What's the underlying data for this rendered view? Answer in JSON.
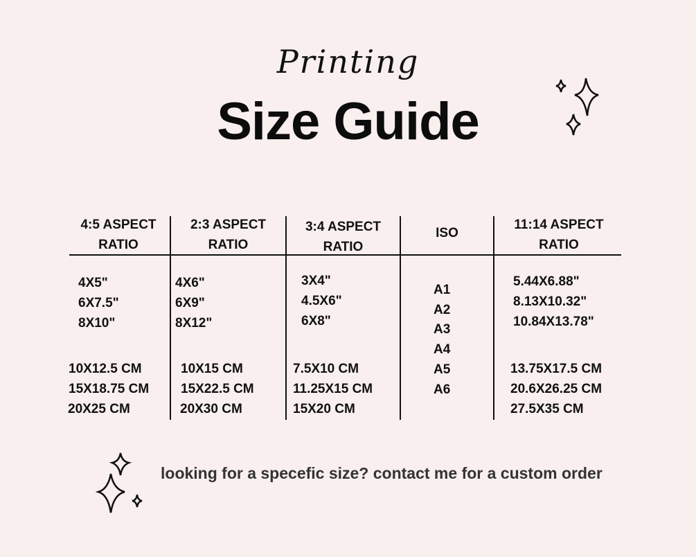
{
  "header": {
    "script_title": "Printing",
    "title": "Size Guide"
  },
  "table": {
    "columns": [
      {
        "header": [
          "4:5 ASPECT",
          "RATIO"
        ],
        "inches": [
          "4X5\"",
          "6X7.5\"",
          "8X10\""
        ],
        "cm": [
          "10X12.5 CM",
          "15X18.75 CM",
          "20X25 CM"
        ]
      },
      {
        "header": [
          "2:3 ASPECT",
          "RATIO"
        ],
        "inches": [
          "4X6\"",
          "6X9\"",
          "8X12\""
        ],
        "cm": [
          "10X15 CM",
          "15X22.5 CM",
          "20X30 CM"
        ]
      },
      {
        "header": [
          "3:4 ASPECT",
          "RATIO"
        ],
        "inches": [
          "3X4\"",
          "4.5X6\"",
          "6X8\""
        ],
        "cm": [
          "7.5X10 CM",
          "11.25X15 CM",
          "15X20 CM"
        ]
      },
      {
        "header": [
          "ISO"
        ],
        "sizes": [
          "A1",
          "A2",
          "A3",
          "A4",
          "A5",
          "A6"
        ]
      },
      {
        "header": [
          "11:14 ASPECT",
          "RATIO"
        ],
        "inches": [
          "5.44X6.88\"",
          "8.13X10.32\"",
          "10.84X13.78\""
        ],
        "cm": [
          "13.75X17.5 CM",
          "20.6X26.25 CM",
          "27.5X35 CM"
        ]
      }
    ]
  },
  "footer": {
    "text": "looking for a specefic size? contact me for a custom order"
  },
  "icons": {
    "decoration": "sparkle-icon"
  },
  "colors": {
    "background": "#f8efee",
    "text": "#111111"
  }
}
